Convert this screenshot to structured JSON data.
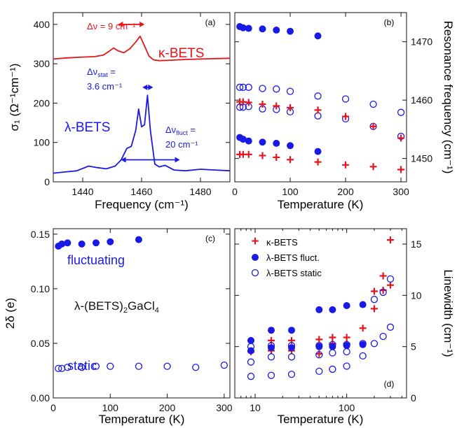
{
  "colors": {
    "red": "#e8141b",
    "blue": "#1a1ae6",
    "black": "#111111"
  },
  "chart_data": [
    {
      "panel": "a",
      "type": "line",
      "panel_label": "(a)",
      "xlabel": "Frequency (cm⁻¹)",
      "ylabel": "σ₁ (Ω⁻¹cm⁻¹)",
      "xlim": [
        1430,
        1490
      ],
      "ylim": [
        0,
        430
      ],
      "xticks": [
        1440,
        1460,
        1480
      ],
      "yticks": [
        0,
        100,
        200,
        300,
        400
      ],
      "series": [
        {
          "name": "κ-BETS",
          "color": "#e8141b",
          "x": [
            1430,
            1435,
            1440,
            1444,
            1447,
            1449,
            1450.5,
            1452,
            1454,
            1456,
            1458,
            1459.5,
            1461,
            1462.5,
            1464,
            1466,
            1470,
            1475,
            1480,
            1485,
            1490
          ],
          "y": [
            312,
            315,
            317,
            318,
            322,
            332,
            340,
            333,
            328,
            338,
            355,
            370,
            345,
            320,
            310,
            308,
            309,
            311,
            312,
            313,
            314
          ]
        },
        {
          "name": "λ-BETS",
          "color": "#1a1ae6",
          "x": [
            1430,
            1434,
            1438,
            1442,
            1445,
            1448,
            1451,
            1453,
            1455,
            1456.5,
            1458,
            1459,
            1460,
            1461,
            1462,
            1463,
            1464.5,
            1466,
            1468,
            1471,
            1475,
            1480,
            1485,
            1490
          ],
          "y": [
            22,
            25,
            28,
            40,
            36,
            33,
            40,
            55,
            85,
            90,
            130,
            185,
            140,
            145,
            220,
            130,
            45,
            38,
            42,
            30,
            28,
            32,
            30,
            28
          ]
        }
      ],
      "annotations": [
        "κ-BETS",
        "λ-BETS",
        "Δν = 9 cm⁻¹",
        "Δν",
        "stat",
        " =",
        "3.6 cm⁻¹",
        "Δν",
        "fluct",
        " =",
        "20 cm⁻¹"
      ]
    },
    {
      "panel": "b",
      "type": "scatter",
      "panel_label": "(b)",
      "xlabel": "Temperature (K)",
      "ylabel": "Resonance frequency (cm⁻¹)",
      "xlim": [
        0,
        310
      ],
      "ylim": [
        1446,
        1475
      ],
      "xticks": [
        0,
        100,
        200,
        300
      ],
      "yticks": [
        1450,
        1460,
        1470
      ],
      "series": [
        {
          "marker": "filled-circle",
          "color": "#1a1ae6",
          "x": [
            9,
            15,
            25,
            50,
            75,
            100,
            150
          ],
          "y": [
            1472.6,
            1472.4,
            1472.3,
            1472.2,
            1472.0,
            1471.8,
            1471.0
          ]
        },
        {
          "marker": "filled-circle",
          "color": "#1a1ae6",
          "x": [
            9,
            15,
            25,
            50,
            75,
            100,
            150
          ],
          "y": [
            1453.6,
            1453.3,
            1453.0,
            1452.8,
            1452.6,
            1452.2,
            1451.2
          ]
        },
        {
          "marker": "open-circle",
          "color": "#1a1ae6",
          "x": [
            9,
            15,
            25,
            50,
            75,
            100,
            150,
            200,
            250,
            300
          ],
          "y": [
            1462.2,
            1462.2,
            1462.2,
            1462.0,
            1461.9,
            1461.5,
            1460.7,
            1460.2,
            1459.3,
            1457.9
          ]
        },
        {
          "marker": "open-circle",
          "color": "#1a1ae6",
          "x": [
            9,
            15,
            25,
            50,
            75,
            100,
            150,
            200,
            250,
            300
          ],
          "y": [
            1458.8,
            1458.8,
            1458.9,
            1458.5,
            1458.4,
            1458.0,
            1457.3,
            1456.8,
            1455.5,
            1453.8
          ]
        },
        {
          "marker": "plus",
          "color": "#e8141b",
          "x": [
            9,
            15,
            25,
            50,
            75,
            100,
            150,
            200,
            250,
            300
          ],
          "y": [
            1459.7,
            1459.7,
            1459.6,
            1459.3,
            1459.0,
            1458.7,
            1458.3,
            1457.2,
            1455.5,
            1453.5
          ]
        },
        {
          "marker": "plus",
          "color": "#e8141b",
          "x": [
            9,
            15,
            25,
            50,
            75,
            100,
            150,
            200,
            250,
            300
          ],
          "y": [
            1450.7,
            1450.7,
            1450.7,
            1450.5,
            1450.2,
            1449.8,
            1449.4,
            1448.9,
            1448.6,
            1448.1
          ]
        }
      ]
    },
    {
      "panel": "c",
      "type": "scatter",
      "panel_label": "(c)",
      "xlabel": "Temperature (K)",
      "ylabel": "2δ (e)",
      "xlim": [
        0,
        310
      ],
      "ylim": [
        0,
        0.155
      ],
      "xticks": [
        0,
        100,
        200,
        300
      ],
      "yticks": [
        0.0,
        0.05,
        0.1,
        0.15
      ],
      "ytick_labels": [
        "0.00",
        "0.05",
        "0.10",
        "0.15"
      ],
      "series": [
        {
          "name": "fluctuating",
          "marker": "filled-circle",
          "color": "#1a1ae6",
          "x": [
            9,
            15,
            25,
            50,
            75,
            100,
            150
          ],
          "y": [
            0.139,
            0.141,
            0.142,
            0.141,
            0.142,
            0.143,
            0.145
          ]
        },
        {
          "name": "static",
          "marker": "open-circle",
          "color": "#1a1ae6",
          "x": [
            9,
            15,
            25,
            50,
            75,
            100,
            150,
            200,
            250,
            300
          ],
          "y": [
            0.027,
            0.027,
            0.028,
            0.028,
            0.029,
            0.029,
            0.029,
            0.029,
            0.028,
            0.03
          ]
        }
      ],
      "annotations": [
        "fluctuating",
        "static",
        "λ-(BETS)",
        "2",
        "GaCl",
        "4"
      ]
    },
    {
      "panel": "d",
      "type": "scatter",
      "panel_label": "(d)",
      "xlabel": "Temperature (K)",
      "ylabel": "Linewidth (cm⁻¹)",
      "xscale": "log",
      "xlim": [
        6,
        450
      ],
      "ylim": [
        0,
        16.5
      ],
      "xticks": [
        10,
        100
      ],
      "yticks": [
        0,
        5,
        10,
        15
      ],
      "legend": {
        "placement": "top-left",
        "entries": [
          "κ-BETS",
          "λ-BETS fluct.",
          "λ-BETS static"
        ]
      },
      "series": [
        {
          "name": "κ-BETS",
          "marker": "plus",
          "color": "#e8141b",
          "x": [
            9,
            15,
            25,
            50,
            70,
            100,
            150,
            200,
            250,
            300
          ],
          "y": [
            5.6,
            5.6,
            5.6,
            5.7,
            5.9,
            5.9,
            6.8,
            10.4,
            11.9,
            15.4
          ]
        },
        {
          "name": "κ-BETS",
          "marker": "plus",
          "color": "#e8141b",
          "x": [
            9,
            15,
            25,
            50,
            70,
            100,
            200,
            250,
            300
          ],
          "y": [
            4.5,
            4.6,
            4.6,
            4.3,
            5.3,
            5.3,
            8.7,
            10.5,
            11.0
          ]
        },
        {
          "name": "λ-BETS fluct.",
          "marker": "filled-circle",
          "color": "#1a1ae6",
          "x": [
            9,
            15,
            25,
            50,
            70,
            100,
            150
          ],
          "y": [
            5.6,
            6.6,
            6.6,
            8.6,
            8.6,
            9.0,
            9.1
          ]
        },
        {
          "name": "λ-BETS fluct.",
          "marker": "filled-circle",
          "color": "#1a1ae6",
          "x": [
            9,
            15,
            25,
            50,
            70,
            100,
            150
          ],
          "y": [
            4.6,
            4.9,
            4.9,
            5.0,
            5.0,
            5.1,
            5.2
          ]
        },
        {
          "name": "λ-BETS static",
          "marker": "open-circle",
          "color": "#1a1ae6",
          "x": [
            9,
            15,
            25,
            50,
            70,
            100,
            150,
            200,
            250,
            300
          ],
          "y": [
            5.0,
            5.1,
            5.1,
            5.1,
            5.2,
            5.2,
            5.3,
            9.6,
            10.3,
            11.6
          ]
        },
        {
          "name": "λ-BETS static",
          "marker": "open-circle",
          "color": "#1a1ae6",
          "x": [
            9,
            15,
            25,
            50,
            70,
            100,
            150,
            200,
            250,
            300
          ],
          "y": [
            3.5,
            4.0,
            4.0,
            4.2,
            4.4,
            4.5,
            4.1,
            5.3,
            6.0,
            6.9
          ]
        },
        {
          "name": "λ-BETS static",
          "marker": "open-circle",
          "color": "#1a1ae6",
          "x": [
            9,
            15,
            25,
            50,
            70,
            100
          ],
          "y": [
            2.1,
            2.2,
            2.3,
            2.6,
            2.8,
            3.1
          ]
        }
      ]
    }
  ]
}
